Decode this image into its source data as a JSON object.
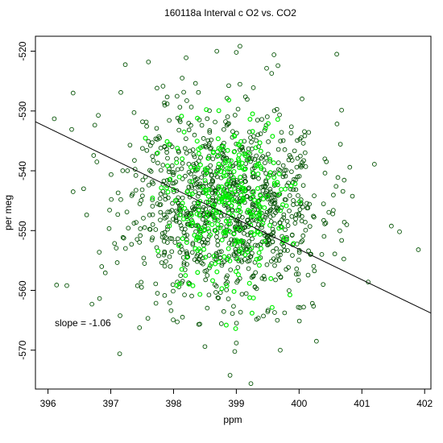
{
  "chart_data": {
    "type": "scatter",
    "title": "160118a   Interval c O2 vs. CO2",
    "xlabel": "ppm",
    "ylabel": "per meg",
    "xlim": [
      395.8,
      402.1
    ],
    "ylim": [
      -576.5,
      -517.5
    ],
    "x_ticks": [
      396,
      397,
      398,
      399,
      400,
      401,
      402
    ],
    "y_ticks": [
      -520,
      -530,
      -540,
      -550,
      -560,
      -570
    ],
    "x_tick_labels": [
      "396",
      "397",
      "398",
      "399",
      "400",
      "401",
      "402"
    ],
    "y_tick_labels": [
      "-520",
      "-530",
      "-540",
      "-550",
      "-560",
      "-570"
    ],
    "annotation": "slope =  -1.06",
    "regression_line": {
      "slope": -1.06,
      "x": [
        395.8,
        402.1
      ],
      "y": [
        -531.8,
        -563.8
      ]
    },
    "grid": false,
    "marker": "open-circle",
    "colors": {
      "dark": "#005000",
      "bright": "#00ee00",
      "line": "#000000"
    },
    "cloud": {
      "x_mean": 398.85,
      "x_sd": 0.8,
      "y_mean": -546.0,
      "y_sd": 8.5,
      "n_dark": 1050,
      "n_bright": 320
    },
    "points_sample": [
      {
        "x": 399.0,
        "y": -520.2
      },
      {
        "x": 400.6,
        "y": -520.5
      },
      {
        "x": 398.2,
        "y": -521.1
      },
      {
        "x": 397.6,
        "y": -521.8
      },
      {
        "x": 399.6,
        "y": -520.6
      },
      {
        "x": 396.4,
        "y": -527.0
      },
      {
        "x": 396.1,
        "y": -531.3
      },
      {
        "x": 401.2,
        "y": -538.9
      },
      {
        "x": 401.9,
        "y": -553.2
      },
      {
        "x": 401.6,
        "y": -550.2
      },
      {
        "x": 401.1,
        "y": -558.6
      },
      {
        "x": 398.9,
        "y": -574.2
      },
      {
        "x": 399.7,
        "y": -570.0
      },
      {
        "x": 396.3,
        "y": -559.2
      },
      {
        "x": 396.7,
        "y": -562.3
      },
      {
        "x": 396.4,
        "y": -543.5
      },
      {
        "x": 398.5,
        "y": -569.4
      },
      {
        "x": 399.0,
        "y": -568.8
      }
    ]
  }
}
